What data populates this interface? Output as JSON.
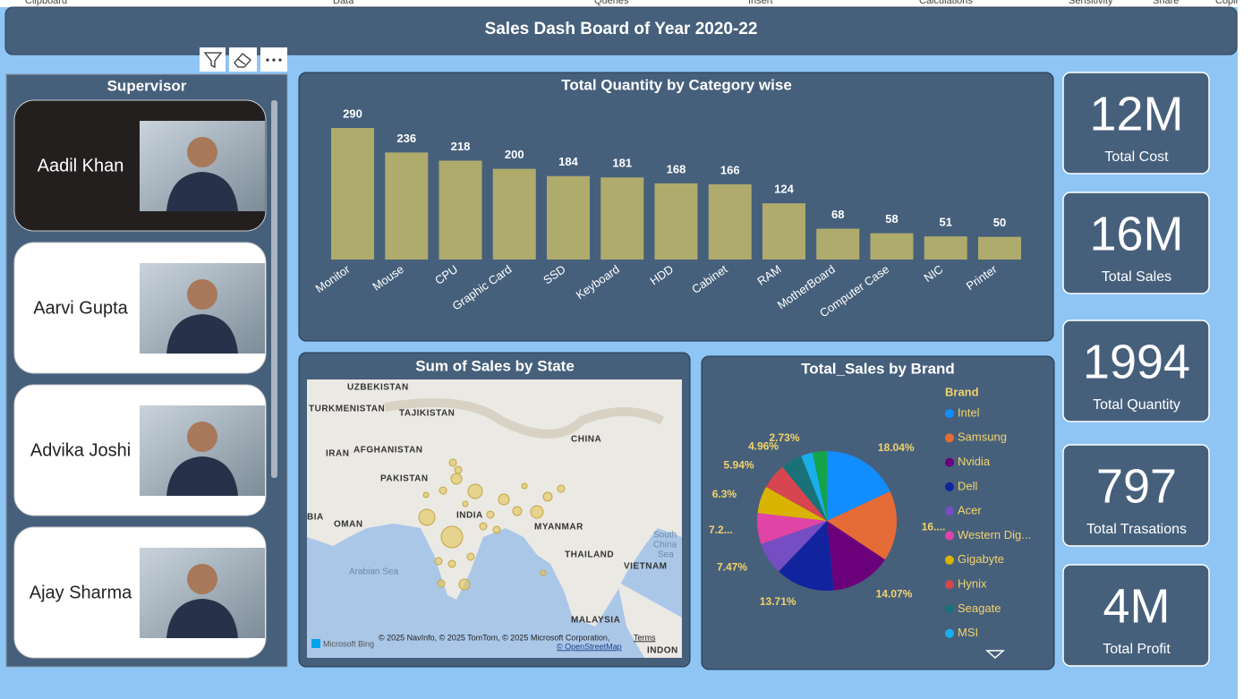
{
  "ribbon": [
    "Clipboard",
    "Data",
    "Queries",
    "Insert",
    "Calculations",
    "Sensitivity",
    "Share",
    "Copilot"
  ],
  "header": {
    "title": "Sales Dash Board of Year 2020-22"
  },
  "supervisor": {
    "title": "Supervisor",
    "names": [
      "Aadil Khan",
      "Aarvi Gupta",
      "Advika Joshi",
      "Ajay Sharma"
    ]
  },
  "chart_data": [
    {
      "type": "bar",
      "title": "Total Quantity by Category wise",
      "categories": [
        "Monitor",
        "Mouse",
        "CPU",
        "Graphic Card",
        "SSD",
        "Keyboard",
        "HDD",
        "Cabinet",
        "RAM",
        "MotherBoard",
        "Computer Case",
        "NIC",
        "Printer"
      ],
      "values": [
        290,
        236,
        218,
        200,
        184,
        181,
        168,
        166,
        124,
        68,
        58,
        51,
        50
      ],
      "color": "#afab6c"
    },
    {
      "type": "pie",
      "title": "Total_Sales by Brand",
      "legend_title": "Brand",
      "categories": [
        "Intel",
        "Samsung",
        "Nvidia",
        "Dell",
        "Acer",
        "Western Dig...",
        "Gigabyte",
        "Hynix",
        "Seagate",
        "MSI",
        null
      ],
      "values": [
        18.04,
        16.3,
        14.07,
        13.71,
        7.47,
        7.2,
        6.3,
        5.94,
        4.96,
        2.73,
        3.28
      ],
      "value_labels": [
        "18.04%",
        "16....",
        "14.07%",
        "13.71%",
        "7.47%",
        "7.2...",
        "6.3%",
        "5.94%",
        "4.96%",
        "2.73%",
        null
      ],
      "colors": [
        "#118dff",
        "#e66c37",
        "#6b007b",
        "#12239e",
        "#744ec2",
        "#e044a7",
        "#d9b300",
        "#d64550",
        "#197278",
        "#1aaeea",
        "#15a34a"
      ]
    }
  ],
  "map": {
    "title": "Sum of Sales by State",
    "labels": [
      "UZBEKISTAN",
      "TURKMENISTAN",
      "TAJIKISTAN",
      "AFGHANISTAN",
      "IRAN",
      "CHINA",
      "PAKISTAN",
      "INDIA",
      "BIA",
      "OMAN",
      "MYANMAR",
      "THAILAND",
      "VIETNAM",
      "South",
      "China",
      "Sea",
      "Arabian Sea",
      "MALAYSIA",
      "INDON"
    ],
    "attribution": "© 2025 NavInfo, © 2025 TomTom, © 2025 Microsoft Corporation,",
    "terms": "Terms",
    "osm": "© OpenStreetMap",
    "bing": "Microsoft Bing"
  },
  "cards": [
    {
      "value": "12M",
      "label": "Total Cost"
    },
    {
      "value": "16M",
      "label": "Total Sales"
    },
    {
      "value": "1994",
      "label": "Total Quantity"
    },
    {
      "value": "797",
      "label": "Total Trasations"
    },
    {
      "value": "4M",
      "label": "Total Profit"
    }
  ]
}
